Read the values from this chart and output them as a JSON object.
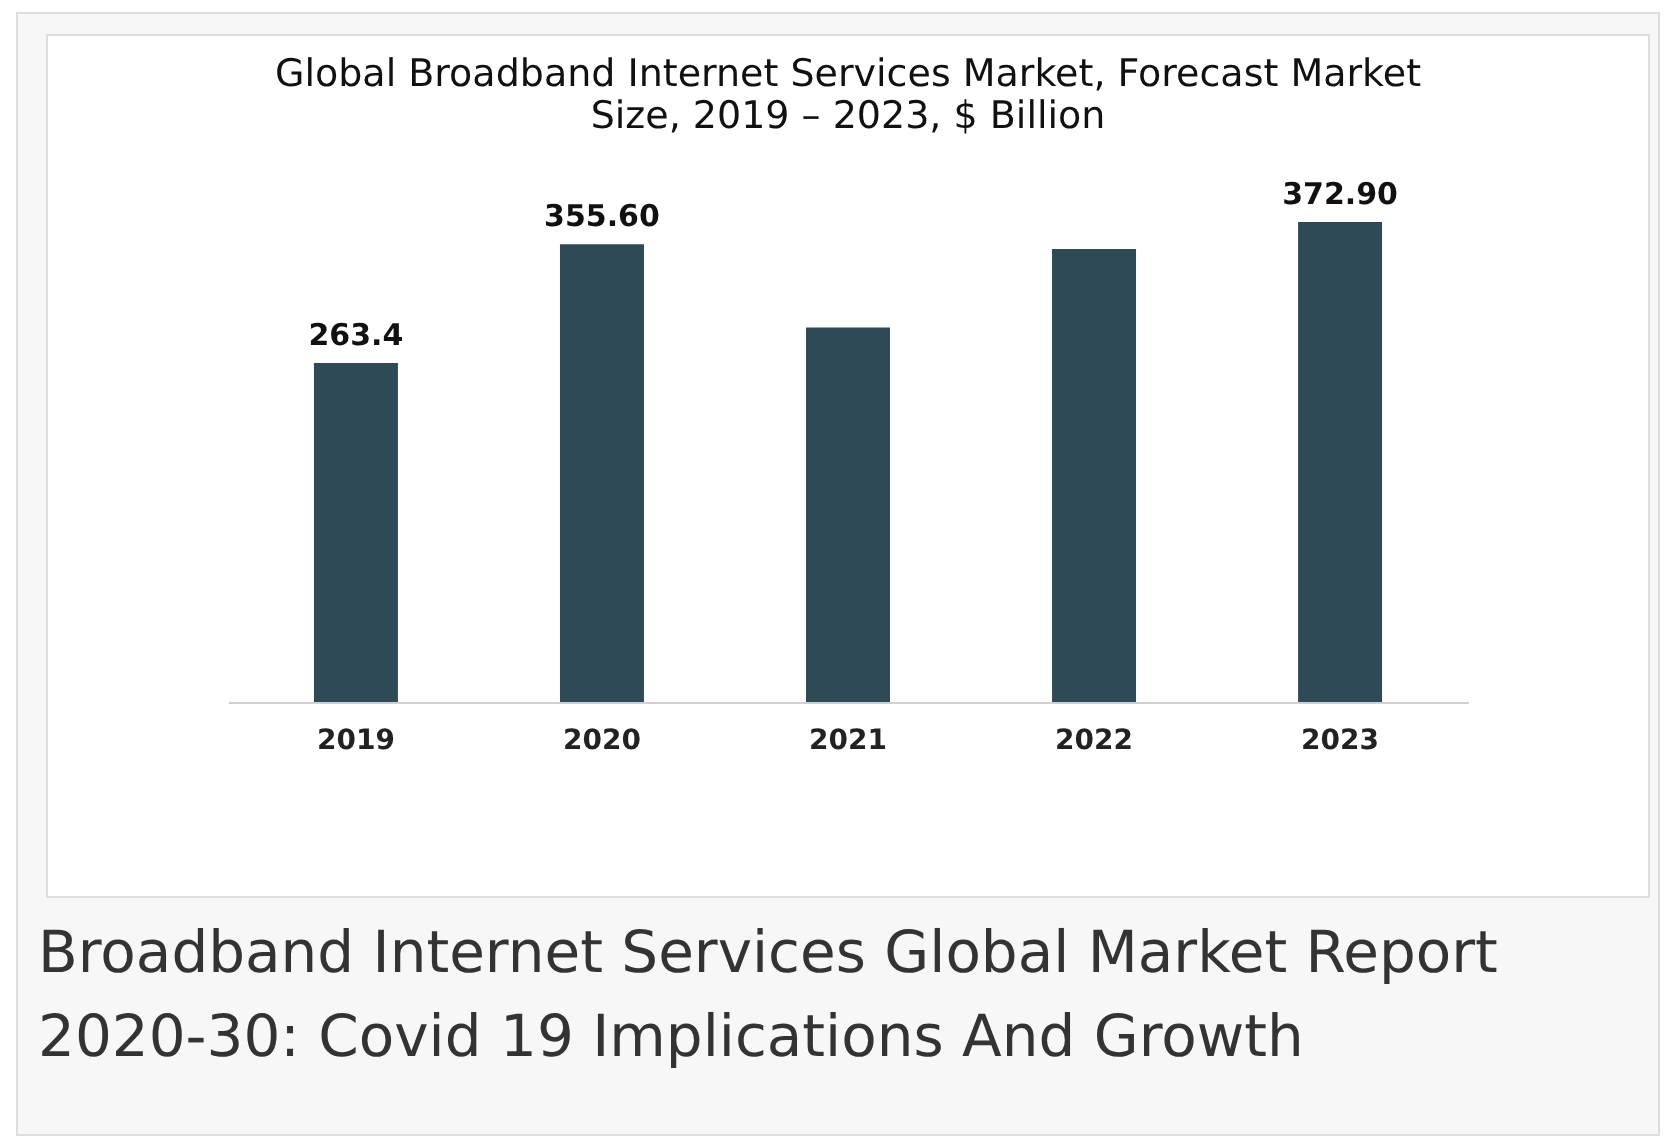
{
  "chart_data": {
    "type": "bar",
    "title": "Global Broadband Internet Services Market, Forecast Market Size, 2019 – 2023, $ Billion",
    "categories": [
      "2019",
      "2020",
      "2021",
      "2022",
      "2023"
    ],
    "values": [
      263.4,
      355.6,
      291,
      352,
      372.9
    ],
    "value_labels": [
      "263.4",
      "355.60",
      null,
      null,
      "372.90"
    ],
    "color": "#2e4a57",
    "annotations": [
      "Broadband Internet Services Global Market Report 2020-30: Covid 19 Implications And Growth"
    ]
  }
}
